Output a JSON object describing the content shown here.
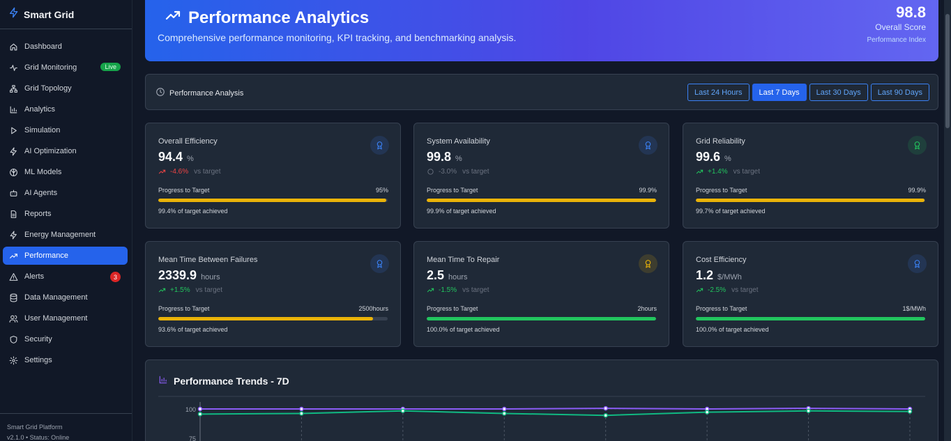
{
  "app": {
    "name": "Smart Grid"
  },
  "sidebar": {
    "items": [
      {
        "label": "Dashboard",
        "icon": "home-icon"
      },
      {
        "label": "Grid Monitoring",
        "icon": "activity-icon",
        "badge": "Live"
      },
      {
        "label": "Grid Topology",
        "icon": "network-icon"
      },
      {
        "label": "Analytics",
        "icon": "bar-chart-icon"
      },
      {
        "label": "Simulation",
        "icon": "play-icon"
      },
      {
        "label": "AI Optimization",
        "icon": "bolt-icon"
      },
      {
        "label": "ML Models",
        "icon": "brain-icon"
      },
      {
        "label": "AI Agents",
        "icon": "bot-icon"
      },
      {
        "label": "Reports",
        "icon": "file-icon"
      },
      {
        "label": "Energy Management",
        "icon": "bolt-icon"
      },
      {
        "label": "Performance",
        "icon": "trend-up-icon",
        "active": true
      },
      {
        "label": "Alerts",
        "icon": "warning-icon",
        "badge": "3"
      },
      {
        "label": "Data Management",
        "icon": "database-icon"
      },
      {
        "label": "User Management",
        "icon": "users-icon"
      },
      {
        "label": "Security",
        "icon": "shield-icon"
      },
      {
        "label": "Settings",
        "icon": "gear-icon"
      }
    ],
    "footer": {
      "platform": "Smart Grid Platform",
      "version": "v2.1.0 • Status: Online"
    }
  },
  "hero": {
    "title": "Performance Analytics",
    "subtitle": "Comprehensive performance monitoring, KPI tracking, and benchmarking analysis.",
    "score": "98.8",
    "score_label": "Overall Score",
    "index_label": "Performance Index"
  },
  "filter": {
    "label": "Performance Analysis",
    "ranges": [
      "Last 24 Hours",
      "Last 7 Days",
      "Last 30 Days",
      "Last 90 Days"
    ],
    "active": "Last 7 Days"
  },
  "kpis": [
    {
      "title": "Overall Efficiency",
      "value": "94.4",
      "unit": "%",
      "trend": "-4.6%",
      "trend_dir": "down",
      "vs": "vs target",
      "progress_label": "Progress to Target",
      "target": "95%",
      "progress": 0.994,
      "achieved": "99.4% of target achieved",
      "badge_color": "#3b82f6",
      "bar_color": "#eab308"
    },
    {
      "title": "System Availability",
      "value": "99.8",
      "unit": "%",
      "trend": "-3.0%",
      "trend_dir": "neutral",
      "vs": "vs target",
      "progress_label": "Progress to Target",
      "target": "99.9%",
      "progress": 0.999,
      "achieved": "99.9% of target achieved",
      "badge_color": "#3b82f6",
      "bar_color": "#eab308"
    },
    {
      "title": "Grid Reliability",
      "value": "99.6",
      "unit": "%",
      "trend": "+1.4%",
      "trend_dir": "up",
      "vs": "vs target",
      "progress_label": "Progress to Target",
      "target": "99.9%",
      "progress": 0.997,
      "achieved": "99.7% of target achieved",
      "badge_color": "#22c55e",
      "bar_color": "#eab308"
    },
    {
      "title": "Mean Time Between Failures",
      "value": "2339.9",
      "unit": "hours",
      "trend": "+1.5%",
      "trend_dir": "up",
      "vs": "vs target",
      "progress_label": "Progress to Target",
      "target": "2500hours",
      "progress": 0.936,
      "achieved": "93.6% of target achieved",
      "badge_color": "#3b82f6",
      "bar_color": "#eab308"
    },
    {
      "title": "Mean Time To Repair",
      "value": "2.5",
      "unit": "hours",
      "trend": "-1.5%",
      "trend_dir": "up",
      "vs": "vs target",
      "progress_label": "Progress to Target",
      "target": "2hours",
      "progress": 1.0,
      "achieved": "100.0% of target achieved",
      "badge_color": "#eab308",
      "bar_color": "#22c55e"
    },
    {
      "title": "Cost Efficiency",
      "value": "1.2",
      "unit": "$/MWh",
      "trend": "-2.5%",
      "trend_dir": "up",
      "vs": "vs target",
      "progress_label": "Progress to Target",
      "target": "1$/MWh",
      "progress": 1.0,
      "achieved": "100.0% of target achieved",
      "badge_color": "#3b82f6",
      "bar_color": "#22c55e"
    }
  ],
  "trends": {
    "title": "Performance Trends - 7D",
    "chart_data": {
      "type": "line",
      "x": [
        1,
        2,
        3,
        4,
        5,
        6,
        7,
        8
      ],
      "yticks": [
        "100",
        "75"
      ],
      "series": [
        {
          "color": "#8b5cf6",
          "values": [
            100,
            100,
            100,
            100,
            100.5,
            100,
            100.5,
            100
          ]
        },
        {
          "color": "#10b981",
          "values": [
            96,
            96.5,
            98.5,
            96.5,
            95,
            97.5,
            98.5,
            98
          ]
        }
      ]
    }
  }
}
